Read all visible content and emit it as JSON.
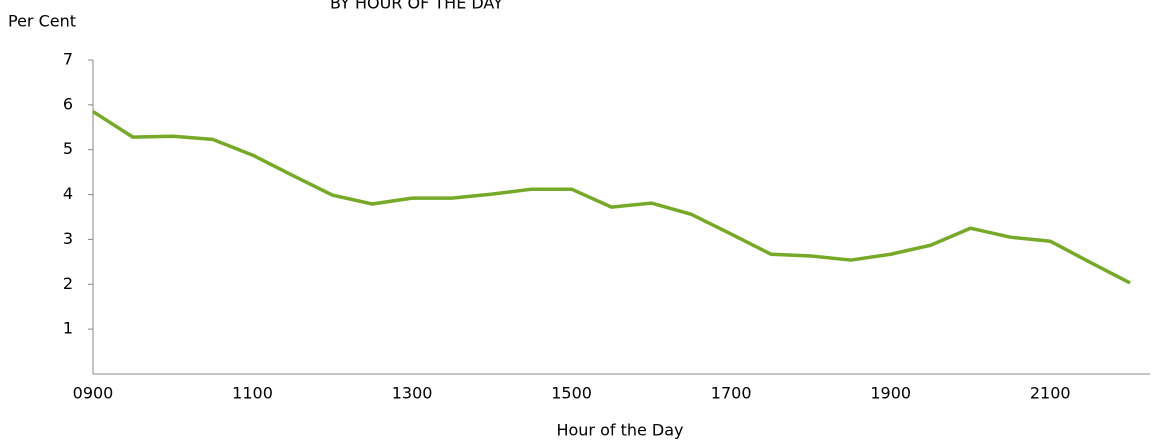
{
  "chart_data": {
    "type": "line",
    "title": "BY HOUR OF THE DAY",
    "ylabel": "Per Cent",
    "xlabel": "Hour of the Day",
    "categories": [
      "0900",
      null,
      null,
      null,
      "1100",
      null,
      null,
      null,
      "1300",
      null,
      null,
      null,
      "1500",
      null,
      null,
      null,
      "1700",
      null,
      null,
      null,
      "1900",
      null,
      null,
      null,
      "2100",
      null,
      null
    ],
    "series": [
      {
        "name": "Per Cent",
        "color": "#76a928",
        "values": [
          5.85,
          5.28,
          5.3,
          5.23,
          4.88,
          4.43,
          3.99,
          3.79,
          3.92,
          3.92,
          4.01,
          4.12,
          4.12,
          3.72,
          3.81,
          3.56,
          3.12,
          2.67,
          2.63,
          2.54,
          2.67,
          2.87,
          3.25,
          3.05,
          2.96,
          2.49,
          2.03
        ]
      }
    ],
    "ylim": [
      0,
      7
    ],
    "yticks": [
      1,
      2,
      3,
      4,
      5,
      6,
      7
    ],
    "grid": false
  }
}
